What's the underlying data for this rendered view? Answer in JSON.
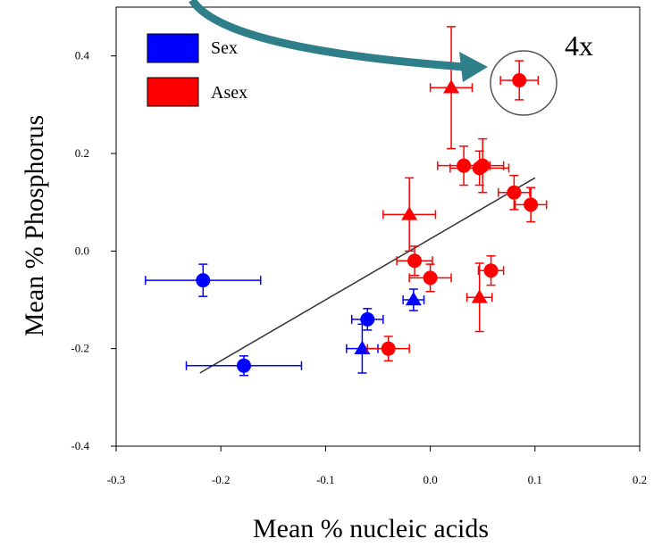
{
  "chart_data": {
    "type": "scatter",
    "xlabel": "Mean % nucleic acids",
    "ylabel": "Mean % Phosphorus",
    "xlim": [
      -0.3,
      0.2
    ],
    "ylim": [
      -0.4,
      0.5
    ],
    "xticks": [
      "-0.3",
      "-0.2",
      "-0.1",
      "0.0",
      "0.1",
      "0.2"
    ],
    "yticks": [
      "-0.4",
      "-0.2",
      "0.0",
      "0.2",
      "0.4"
    ],
    "legend_position": "top-left",
    "grid": false,
    "annotation": "4x",
    "series": [
      {
        "name": "Sex",
        "color": "#0000ff",
        "points": [
          {
            "x": -0.217,
            "y": -0.06,
            "xerr": 0.055,
            "yerr": 0.033,
            "marker": "circle"
          },
          {
            "x": -0.178,
            "y": -0.235,
            "xerr": 0.055,
            "yerr": 0.02,
            "marker": "circle"
          },
          {
            "x": -0.06,
            "y": -0.14,
            "xerr": 0.015,
            "yerr": 0.022,
            "marker": "circle"
          },
          {
            "x": -0.065,
            "y": -0.2,
            "xerr": 0.015,
            "yerr": 0.05,
            "marker": "triangle"
          },
          {
            "x": -0.016,
            "y": -0.1,
            "xerr": 0.01,
            "yerr": 0.022,
            "marker": "triangle"
          }
        ]
      },
      {
        "name": "Asex",
        "color": "#ff0000",
        "points": [
          {
            "x": 0.02,
            "y": 0.335,
            "xerr": 0.02,
            "yerr": 0.125,
            "marker": "triangle"
          },
          {
            "x": 0.085,
            "y": 0.35,
            "xerr": 0.018,
            "yerr": 0.04,
            "marker": "circle"
          },
          {
            "x": 0.032,
            "y": 0.175,
            "xerr": 0.025,
            "yerr": 0.04,
            "marker": "circle"
          },
          {
            "x": 0.05,
            "y": 0.175,
            "xerr": 0.02,
            "yerr": 0.055,
            "marker": "circle"
          },
          {
            "x": 0.047,
            "y": 0.17,
            "xerr": 0.028,
            "yerr": 0.035,
            "marker": "circle"
          },
          {
            "x": 0.08,
            "y": 0.12,
            "xerr": 0.015,
            "yerr": 0.035,
            "marker": "circle"
          },
          {
            "x": 0.096,
            "y": 0.095,
            "xerr": 0.015,
            "yerr": 0.035,
            "marker": "circle"
          },
          {
            "x": -0.02,
            "y": 0.075,
            "xerr": 0.025,
            "yerr": 0.075,
            "marker": "triangle"
          },
          {
            "x": -0.015,
            "y": -0.02,
            "xerr": 0.017,
            "yerr": 0.03,
            "marker": "circle"
          },
          {
            "x": 0.0,
            "y": -0.055,
            "xerr": 0.02,
            "yerr": 0.028,
            "marker": "circle"
          },
          {
            "x": 0.058,
            "y": -0.04,
            "xerr": 0.012,
            "yerr": 0.03,
            "marker": "circle"
          },
          {
            "x": 0.047,
            "y": -0.095,
            "xerr": 0.012,
            "yerr": 0.07,
            "marker": "triangle"
          },
          {
            "x": -0.04,
            "y": -0.2,
            "xerr": 0.02,
            "yerr": 0.025,
            "marker": "circle"
          }
        ]
      }
    ],
    "regression_line": {
      "x": [
        -0.22,
        0.1
      ],
      "y": [
        -0.25,
        0.15
      ]
    }
  }
}
